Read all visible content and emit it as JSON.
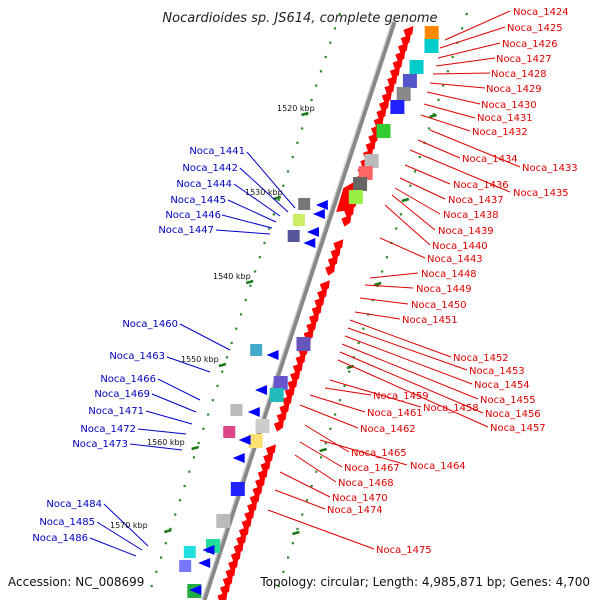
{
  "title": "Nocardioides sp. JS614, complete genome",
  "footer": {
    "accession": "Accession: NC_008699",
    "topology": "Topology: circular; Length: 4,985,871 bp; Genes: 4,700"
  },
  "ruler_labels": [
    "1520 kbp",
    "1530 kbp",
    "1540 kbp",
    "1550 kbp",
    "1560 kbp",
    "1570 kbp"
  ],
  "right_labels": [
    "Noca_1424",
    "Noca_1425",
    "Noca_1426",
    "Noca_1427",
    "Noca_1428",
    "Noca_1429",
    "Noca_1430",
    "Noca_1431",
    "Noca_1432",
    "Noca_1433",
    "Noca_1434",
    "Noca_1435",
    "Noca_1436",
    "Noca_1437",
    "Noca_1438",
    "Noca_1439",
    "Noca_1440",
    "Noca_1443",
    "Noca_1448",
    "Noca_1449",
    "Noca_1450",
    "Noca_1451",
    "Noca_1452",
    "Noca_1453",
    "Noca_1454",
    "Noca_1455",
    "Noca_1456",
    "Noca_1457",
    "Noca_1458",
    "Noca_1459",
    "Noca_1461",
    "Noca_1462",
    "Noca_1464",
    "Noca_1465",
    "Noca_1467",
    "Noca_1468",
    "Noca_1470",
    "Noca_1474",
    "Noca_1475"
  ],
  "left_labels": [
    "Noca_1441",
    "Noca_1442",
    "Noca_1444",
    "Noca_1445",
    "Noca_1446",
    "Noca_1447",
    "Noca_1460",
    "Noca_1463",
    "Noca_1466",
    "Noca_1469",
    "Noca_1471",
    "Noca_1472",
    "Noca_1473",
    "Noca_1484",
    "Noca_1485",
    "Noca_1486"
  ],
  "colors": {
    "forward": "#ff0000",
    "reverse": "#0000ff",
    "backbone": "#888888",
    "tick": "#228b22"
  }
}
